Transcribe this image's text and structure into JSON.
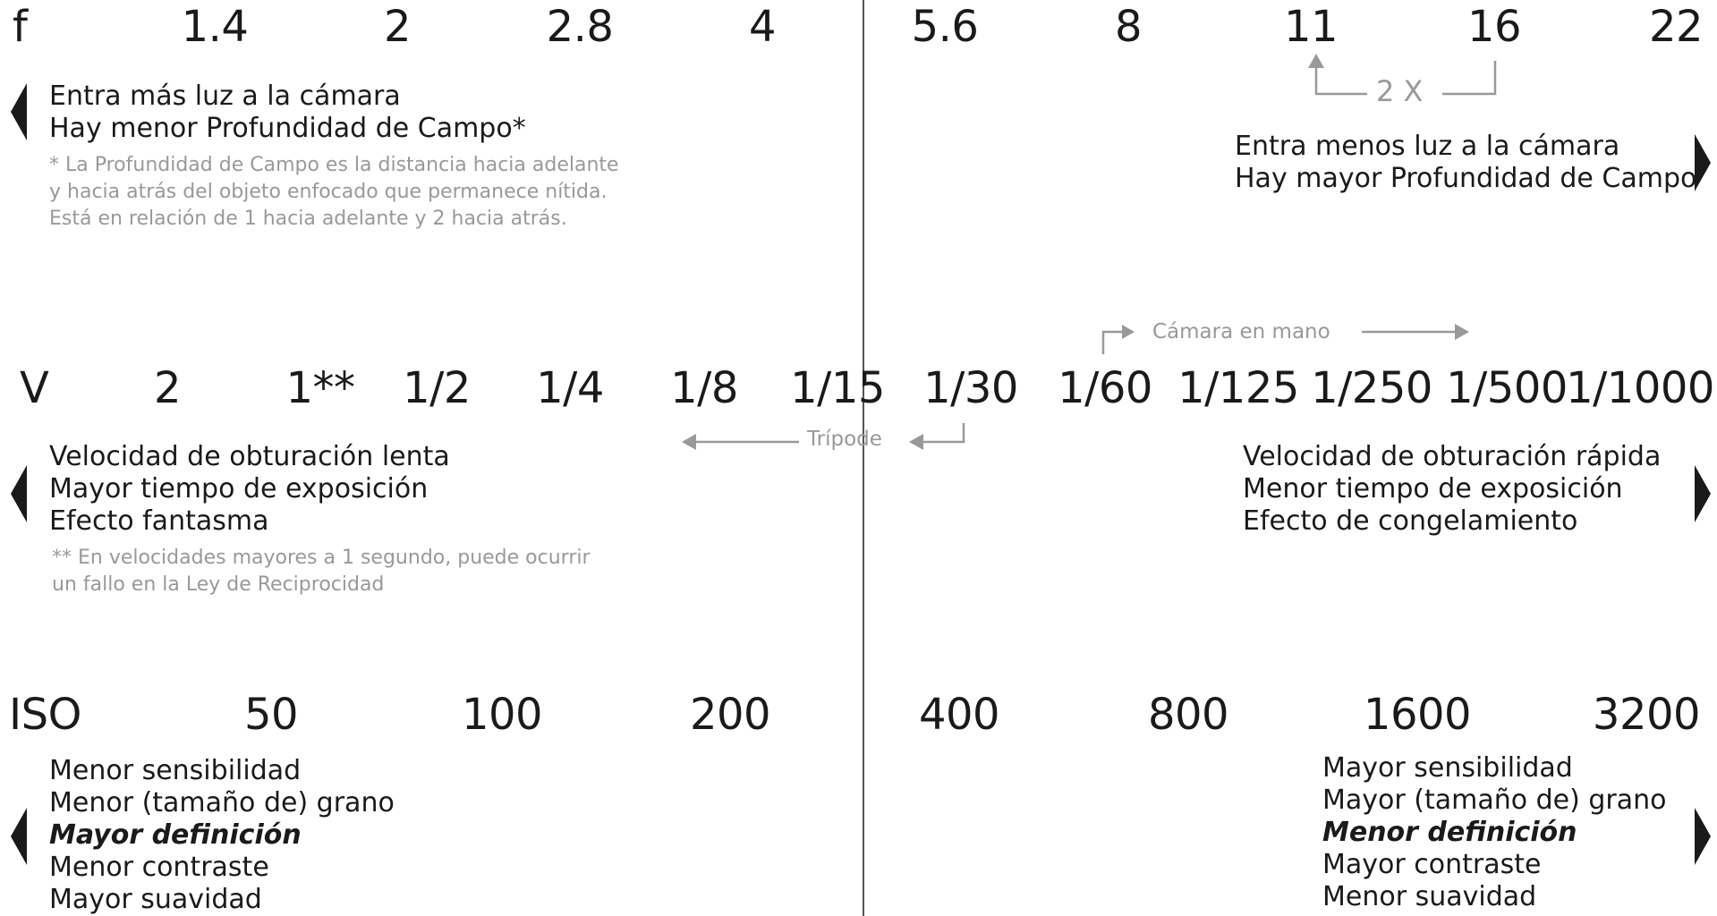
{
  "aperture": {
    "label": "f",
    "stops": [
      "1.4",
      "2",
      "2.8",
      "4",
      "5.6",
      "8",
      "11",
      "16",
      "22"
    ],
    "left_text": [
      "Entra más luz a la cámara",
      "Hay menor Profundidad de Campo*"
    ],
    "note": [
      "* La Profundidad de Campo es la distancia hacia adelante",
      "y hacia atrás del objeto enfocado que permanece nítida.",
      "Está en relación de 1 hacia adelante y 2 hacia atrás."
    ],
    "double_label": "2 X",
    "right_text": [
      "Entra menos luz a la cámara",
      "Hay mayor Profundidad de Campo"
    ]
  },
  "shutter": {
    "label": "V",
    "stops": [
      "2",
      "1**",
      "1/2",
      "1/4",
      "1/8",
      "1/15",
      "1/30",
      "1/60",
      "1/125",
      "1/250",
      "1/500",
      "1/1000"
    ],
    "handheld_label": "Cámara en mano",
    "tripod_label": "Trípode",
    "left_text": [
      "Velocidad de obturación lenta",
      "Mayor tiempo de exposición",
      "Efecto fantasma"
    ],
    "note": [
      "** En velocidades mayores a 1 segundo, puede ocurrir",
      "un fallo en la Ley de Reciprocidad"
    ],
    "right_text": [
      "Velocidad de obturación rápida",
      "Menor tiempo de exposición",
      "Efecto de congelamiento"
    ]
  },
  "iso": {
    "label": "ISO",
    "stops": [
      "50",
      "100",
      "200",
      "400",
      "800",
      "1600",
      "3200"
    ],
    "left_text": [
      "Menor sensibilidad",
      "Menor (tamaño de) grano",
      "Mayor definición",
      "Menor contraste",
      "Mayor suavidad"
    ],
    "right_text": [
      "Mayor sensibilidad",
      "Mayor (tamaño de) grano",
      "Menor definición",
      "Mayor contraste",
      "Menor suavidad"
    ]
  }
}
